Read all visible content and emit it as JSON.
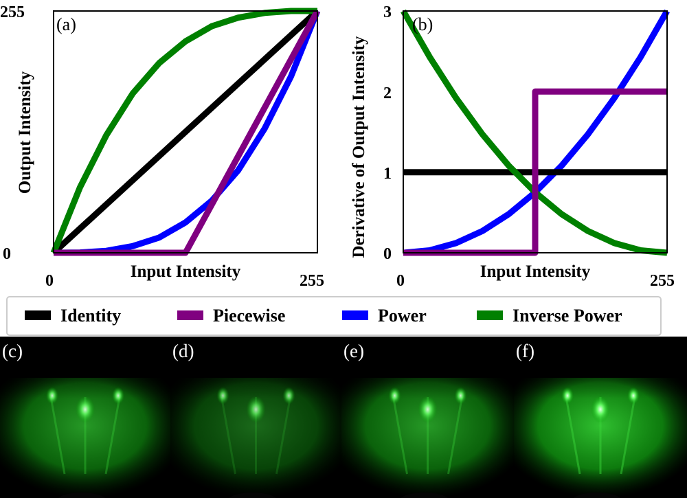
{
  "chart_data": [
    {
      "panel": "(a)",
      "type": "line",
      "xlabel": "Input Intensity",
      "ylabel": "Output Intensity",
      "xlim": [
        0,
        255
      ],
      "ylim": [
        0,
        255
      ],
      "xticks": [
        "0",
        "255"
      ],
      "yticks": [
        "0",
        "255"
      ],
      "grid": false,
      "series": [
        {
          "name": "Identity",
          "color": "#000000",
          "x": [
            0,
            255
          ],
          "y": [
            0,
            255
          ]
        },
        {
          "name": "Piecewise",
          "color": "#800080",
          "x": [
            0,
            127.5,
            255
          ],
          "y": [
            0,
            0,
            255
          ]
        },
        {
          "name": "Power",
          "color": "#0000ff",
          "x": [
            0,
            25.5,
            51,
            76.5,
            102,
            127.5,
            153,
            178.5,
            204,
            229.5,
            255
          ],
          "y": [
            0,
            0.3,
            2,
            7,
            16,
            32,
            55,
            87,
            131,
            186,
            255
          ]
        },
        {
          "name": "Inverse Power",
          "color": "#008000",
          "x": [
            0,
            25.5,
            51,
            76.5,
            102,
            127.5,
            153,
            178.5,
            204,
            229.5,
            255
          ],
          "y": [
            0,
            69,
            124,
            168,
            200,
            223,
            239,
            248,
            253,
            255,
            255
          ]
        }
      ]
    },
    {
      "panel": "(b)",
      "type": "line",
      "xlabel": "Input Intensity",
      "ylabel": "Derivative of Output Intensity",
      "xlim": [
        0,
        255
      ],
      "ylim": [
        0,
        3
      ],
      "xticks": [
        "0",
        "255"
      ],
      "yticks": [
        "0",
        "1",
        "2",
        "3"
      ],
      "grid": false,
      "series": [
        {
          "name": "Identity",
          "color": "#000000",
          "x": [
            0,
            255
          ],
          "y": [
            1,
            1
          ]
        },
        {
          "name": "Piecewise",
          "color": "#800080",
          "x": [
            0,
            127.5,
            127.5,
            255
          ],
          "y": [
            0,
            0,
            2,
            2
          ]
        },
        {
          "name": "Power",
          "color": "#0000ff",
          "x": [
            0,
            25.5,
            51,
            76.5,
            102,
            127.5,
            153,
            178.5,
            204,
            229.5,
            255
          ],
          "y": [
            0,
            0.03,
            0.12,
            0.27,
            0.48,
            0.75,
            1.08,
            1.47,
            1.92,
            2.43,
            3
          ]
        },
        {
          "name": "Inverse Power",
          "color": "#008000",
          "x": [
            0,
            25.5,
            51,
            76.5,
            102,
            127.5,
            153,
            178.5,
            204,
            229.5,
            255
          ],
          "y": [
            3,
            2.43,
            1.92,
            1.47,
            1.08,
            0.75,
            0.48,
            0.27,
            0.12,
            0.03,
            0
          ]
        }
      ]
    }
  ],
  "legend": [
    {
      "label": "Identity",
      "color": "#000000"
    },
    {
      "label": "Piecewise",
      "color": "#800080"
    },
    {
      "label": "Power",
      "color": "#0000ff"
    },
    {
      "label": "Inverse Power",
      "color": "#008000"
    }
  ],
  "images": [
    {
      "label": "(c)",
      "brightness": 1.0
    },
    {
      "label": "(d)",
      "brightness": 0.55
    },
    {
      "label": "(e)",
      "brightness": 1.0
    },
    {
      "label": "(f)",
      "brightness": 1.4
    }
  ]
}
